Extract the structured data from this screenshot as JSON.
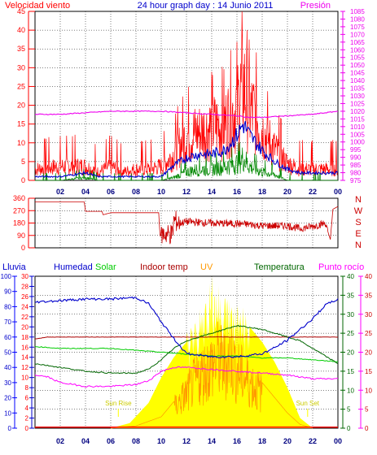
{
  "title": "24 hour graph day : 14 Junio 2011",
  "colors": {
    "wind": "#ff0000",
    "wind_avg": "#0000cc",
    "wind_green": "#008800",
    "pressure": "#ee00ee",
    "direction": "#cc0000",
    "humidity": "#0000cc",
    "solar": "#00cc00",
    "indoor": "#aa0000",
    "uv": "#ff9900",
    "temperature": "#006600",
    "dewpoint": "#ff00ff",
    "rain": "#0000ff",
    "sun_fill": "#ffff00",
    "grid": "#000000",
    "tick_text": "#000080"
  },
  "chart_data": [
    {
      "type": "line",
      "title": "24 hour graph day : 14 Junio 2011",
      "ylabel": "Velocidad viento",
      "y2label": "Presión",
      "ylim": [
        0,
        45
      ],
      "y2lim": [
        975,
        1085
      ],
      "yticks": [
        "0",
        "5",
        "10",
        "15",
        "20",
        "25",
        "30",
        "35",
        "40",
        "45"
      ],
      "y2ticks": [
        "975",
        "980",
        "985",
        "990",
        "995",
        "1000",
        "1005",
        "1010",
        "1015",
        "1020",
        "1025",
        "1030",
        "1035",
        "1040",
        "1045",
        "1050",
        "1055",
        "1060",
        "1065",
        "1070",
        "1075",
        "1080",
        "1085"
      ],
      "xticks": [
        "02",
        "04",
        "06",
        "08",
        "10",
        "12",
        "14",
        "16",
        "18",
        "20",
        "22",
        "00"
      ],
      "series": [
        {
          "key": "wind_gust",
          "x": [
            0,
            2,
            4,
            5,
            6,
            7,
            8,
            9,
            10,
            11,
            12,
            13,
            14,
            15,
            16,
            16.5,
            17,
            17.5,
            18,
            19,
            20,
            21,
            22,
            23,
            24
          ],
          "values": [
            4,
            5,
            5,
            3,
            5,
            3,
            4,
            4,
            5,
            9,
            16,
            17,
            19,
            20,
            26,
            34,
            25,
            23,
            18,
            11,
            6,
            4,
            4,
            4,
            4
          ]
        },
        {
          "key": "wind_avg",
          "x": [
            0,
            2,
            4,
            5,
            6,
            7,
            8,
            9,
            10,
            11,
            12,
            13,
            14,
            15,
            16,
            16.5,
            17,
            17.5,
            18,
            19,
            20,
            21,
            22,
            23,
            24
          ],
          "values": [
            1,
            1,
            2,
            1,
            1,
            1,
            1,
            1,
            1,
            4,
            6,
            7,
            7,
            8,
            12,
            15,
            12,
            10,
            8,
            5,
            3,
            2,
            2,
            2,
            2
          ]
        },
        {
          "key": "wind_green",
          "x": [
            0,
            2,
            4,
            5,
            6,
            7,
            8,
            9,
            10,
            11,
            12,
            13,
            14,
            15,
            16,
            16.5,
            17,
            17.5,
            18,
            19,
            20,
            21,
            22,
            23,
            24
          ],
          "values": [
            0,
            0,
            1,
            0,
            0,
            0,
            0,
            0,
            0,
            1,
            3,
            4,
            4,
            5,
            6,
            8,
            5,
            4,
            3,
            2,
            0,
            0,
            0,
            0,
            0
          ]
        },
        {
          "key": "pressure",
          "x": [
            0,
            2,
            4,
            6,
            8,
            10,
            12,
            14,
            16,
            17,
            18,
            20,
            22,
            24
          ],
          "values": [
            1018,
            1018,
            1019,
            1020,
            1020,
            1020,
            1019,
            1018,
            1017,
            1016,
            1016,
            1017,
            1018,
            1020
          ]
        }
      ]
    },
    {
      "type": "line",
      "yticks": [
        "0",
        "90",
        "180",
        "270",
        "360"
      ],
      "ylim": [
        0,
        360
      ],
      "compass": [
        "N",
        "W",
        "S",
        "E",
        "N"
      ],
      "xticks": [
        "02",
        "04",
        "06",
        "08",
        "10",
        "12",
        "14",
        "16",
        "18",
        "20",
        "22",
        "00"
      ],
      "series": [
        {
          "key": "direction",
          "x": [
            0,
            2,
            3.9,
            4,
            5.3,
            5.4,
            6,
            8,
            9.8,
            9.9,
            10.9,
            11,
            11.5,
            12,
            14,
            16,
            17,
            18,
            20,
            21,
            22,
            23,
            23.2,
            23.4,
            23.6,
            24
          ],
          "values": [
            333,
            333,
            333,
            265,
            265,
            240,
            255,
            255,
            255,
            100,
            100,
            200,
            180,
            190,
            180,
            175,
            170,
            160,
            160,
            140,
            155,
            180,
            120,
            60,
            280,
            300
          ]
        }
      ]
    },
    {
      "type": "line",
      "labels": {
        "rain": "Lluvia",
        "humidity": "Humedad",
        "solar": "Solar",
        "indoor": "Indoor temp",
        "uv": "UV",
        "temperature": "Temperatura",
        "dewpoint": "Punto rocío"
      },
      "y_rain_ticks": [
        "0",
        "2",
        "4",
        "6",
        "8",
        "10",
        "12",
        "14",
        "16",
        "18",
        "20",
        "22",
        "24",
        "26",
        "28",
        "30"
      ],
      "y_hum_ticks": [
        "0",
        "10",
        "20",
        "30",
        "40",
        "50",
        "60",
        "70",
        "80",
        "90",
        "100"
      ],
      "y_temp_ticks": [
        "0",
        "5",
        "10",
        "15",
        "20",
        "25",
        "30",
        "35",
        "40"
      ],
      "y_dew_ticks": [
        "0",
        "5",
        "10",
        "15",
        "20",
        "25",
        "30",
        "35",
        "40"
      ],
      "rain_lim": [
        0,
        30
      ],
      "hum_lim": [
        0,
        100
      ],
      "temp_lim": [
        0,
        40
      ],
      "xticks": [
        "02",
        "04",
        "06",
        "08",
        "10",
        "12",
        "14",
        "16",
        "18",
        "20",
        "22",
        "00"
      ],
      "sunrise_label": "Sun Rise",
      "sunset_label": "Sun Set",
      "sunrise_hour": 6.6,
      "sunset_hour": 21.6,
      "series": [
        {
          "key": "humidity",
          "x": [
            0,
            2,
            4,
            6,
            8,
            9,
            10,
            11,
            12,
            14,
            16,
            18,
            19,
            20,
            21,
            22,
            23,
            24
          ],
          "values": [
            83,
            84,
            85,
            85,
            86,
            82,
            70,
            59,
            49,
            47,
            47,
            49,
            53,
            58,
            65,
            72,
            81,
            85
          ]
        },
        {
          "key": "indoor",
          "x": [
            0,
            1,
            2,
            4,
            6,
            8,
            10,
            12,
            14,
            16,
            18,
            20,
            22,
            24
          ],
          "values": [
            23.5,
            24,
            24,
            24,
            24,
            24,
            24,
            24,
            24,
            24,
            24,
            24,
            24,
            24
          ]
        },
        {
          "key": "temperature",
          "x": [
            0,
            2,
            4,
            6,
            8,
            9,
            10,
            11,
            12,
            14,
            16,
            18,
            19,
            20,
            21,
            22,
            23,
            24
          ],
          "values": [
            17,
            16,
            15,
            14.5,
            14.5,
            15.5,
            18,
            21,
            23,
            25,
            27,
            26,
            25,
            24,
            23,
            21,
            19,
            17
          ]
        },
        {
          "key": "solar_line",
          "x": [
            0,
            2,
            4,
            6,
            8,
            10,
            12,
            14,
            16,
            18,
            20,
            22,
            24
          ],
          "values": [
            21.5,
            21,
            21,
            21,
            20.5,
            20,
            19.5,
            19,
            19,
            18.5,
            18.5,
            18,
            17.5
          ]
        },
        {
          "key": "dewpoint",
          "x": [
            0,
            1,
            2,
            4,
            6,
            8,
            9,
            10,
            11,
            12,
            14,
            16,
            18,
            20,
            21,
            22,
            24
          ],
          "values": [
            14,
            13.5,
            12,
            11,
            11,
            11.5,
            12.5,
            15,
            16,
            16,
            15.5,
            15,
            14.5,
            14,
            13.5,
            13,
            13
          ]
        },
        {
          "key": "uv",
          "x": [
            6,
            8,
            10,
            11,
            12,
            13,
            14,
            14.5,
            15,
            15.5,
            16,
            17,
            18,
            19,
            20,
            21,
            22
          ],
          "values": [
            0,
            0.3,
            1.5,
            3.5,
            6,
            9,
            11,
            12,
            11,
            12.5,
            10,
            8,
            6,
            4,
            2,
            0.5,
            0
          ]
        },
        {
          "key": "sun",
          "x": [
            6,
            7.5,
            9,
            10,
            11,
            12,
            13,
            13.5,
            14,
            14.5,
            15,
            16,
            17,
            18,
            19,
            20,
            21,
            22
          ],
          "values": [
            0,
            1,
            5,
            10,
            14,
            17,
            20,
            24,
            27,
            25,
            24,
            22,
            20,
            17,
            13,
            8,
            2,
            0
          ]
        },
        {
          "key": "rain",
          "x": [
            0,
            24
          ],
          "values": [
            0.2,
            0.2
          ]
        }
      ]
    }
  ]
}
